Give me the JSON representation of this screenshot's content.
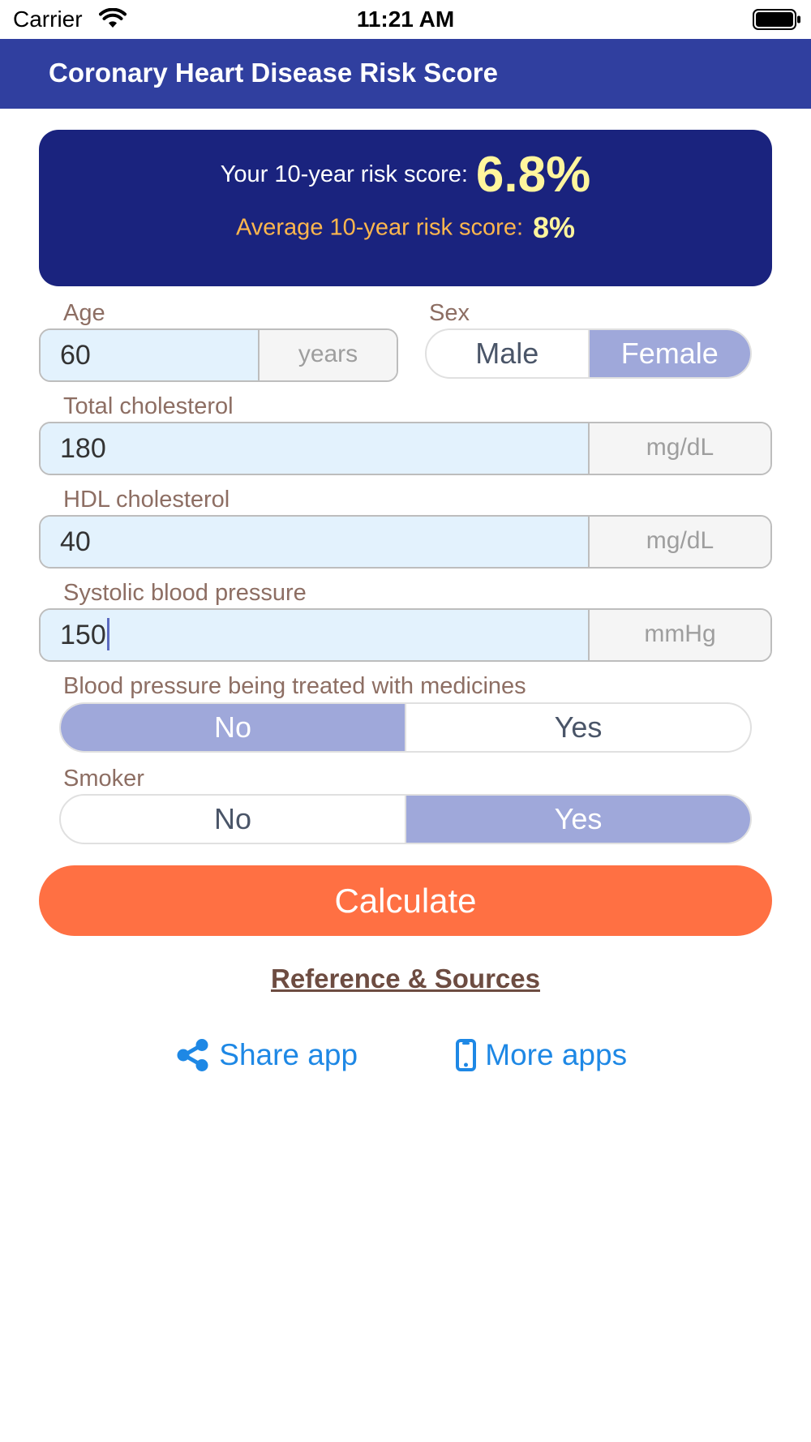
{
  "status_bar": {
    "carrier": "Carrier",
    "time": "11:21 AM"
  },
  "header": {
    "title": "Coronary Heart Disease Risk Score"
  },
  "result": {
    "your_label": "Your 10-year risk score:",
    "your_value": "6.8%",
    "average_label": "Average 10-year risk score:",
    "average_value": "8%"
  },
  "age": {
    "label": "Age",
    "value": "60",
    "unit": "years"
  },
  "sex": {
    "label": "Sex",
    "options": [
      "Male",
      "Female"
    ],
    "selected": "Female"
  },
  "total_cholesterol": {
    "label": "Total cholesterol",
    "value": "180",
    "unit": "mg/dL"
  },
  "hdl_cholesterol": {
    "label": "HDL cholesterol",
    "value": "40",
    "unit": "mg/dL"
  },
  "systolic_bp": {
    "label": "Systolic blood pressure",
    "value": "150",
    "unit": "mmHg"
  },
  "bp_treated": {
    "label": "Blood pressure being treated with medicines",
    "options": [
      "No",
      "Yes"
    ],
    "selected": "No"
  },
  "smoker": {
    "label": "Smoker",
    "options": [
      "No",
      "Yes"
    ],
    "selected": "Yes"
  },
  "actions": {
    "calculate_label": "Calculate",
    "reference_label": "Reference & Sources",
    "share_label": "Share app",
    "more_apps_label": "More apps"
  },
  "colors": {
    "header_bg": "#303f9f",
    "card_bg": "#1a237e",
    "highlight_value": "#fff59d",
    "average_label": "#ffb74d",
    "input_bg": "#e3f2fd",
    "segment_selected": "#9fa8da",
    "calculate_button": "#ff7043",
    "label_text": "#8d6e63",
    "link_blue": "#1e88e5"
  },
  "icons": {
    "share": "share-icon",
    "more_apps": "mobile-phone-icon",
    "wifi": "wifi-icon",
    "battery": "battery-icon"
  }
}
